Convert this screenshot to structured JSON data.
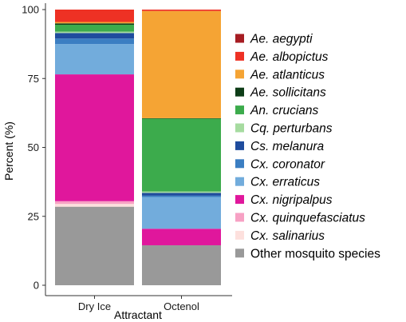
{
  "chart_data": {
    "type": "bar",
    "stacked": true,
    "xlabel": "Attractant",
    "ylabel": "Percent (%)",
    "ylim": [
      0,
      100
    ],
    "yticks": [
      0,
      25,
      50,
      75,
      100
    ],
    "categories": [
      "Dry Ice",
      "Octenol"
    ],
    "legend_position": "right",
    "grid": false,
    "series": [
      {
        "name": "Other mosquito species",
        "italic": false,
        "color": "#999999",
        "values": [
          28.5,
          14.5
        ]
      },
      {
        "name": "Cx. salinarius",
        "italic": true,
        "color": "#fde0dd",
        "values": [
          1.0,
          0
        ]
      },
      {
        "name": "Cx. quinquefasciatus",
        "italic": true,
        "color": "#f7a1c4",
        "values": [
          1.0,
          0
        ]
      },
      {
        "name": "Cx. nigripalpus",
        "italic": true,
        "color": "#e0179c",
        "values": [
          46.0,
          6.0
        ]
      },
      {
        "name": "Cx. erraticus",
        "italic": true,
        "color": "#72acdc",
        "values": [
          11.0,
          11.5
        ]
      },
      {
        "name": "Cx. coronator",
        "italic": true,
        "color": "#3b7ec2",
        "values": [
          2.0,
          0.5
        ]
      },
      {
        "name": "Cs. melanura",
        "italic": true,
        "color": "#1f4c9e",
        "values": [
          2.0,
          1.0
        ]
      },
      {
        "name": "Cq. perturbans",
        "italic": true,
        "color": "#a6dba0",
        "values": [
          0.5,
          0.5
        ]
      },
      {
        "name": "An. crucians",
        "italic": true,
        "color": "#3cab4c",
        "values": [
          2.5,
          26.5
        ]
      },
      {
        "name": "Ae. sollicitans",
        "italic": true,
        "color": "#0e3d17",
        "values": [
          0.5,
          0.1
        ]
      },
      {
        "name": "Ae. atlanticus",
        "italic": true,
        "color": "#f5a434",
        "values": [
          0.5,
          38.9
        ]
      },
      {
        "name": "Ae. albopictus",
        "italic": true,
        "color": "#ee3124",
        "values": [
          4.5,
          0.5
        ]
      },
      {
        "name": "Ae. aegypti",
        "italic": true,
        "color": "#a61c22",
        "values": [
          0,
          0
        ]
      }
    ]
  }
}
